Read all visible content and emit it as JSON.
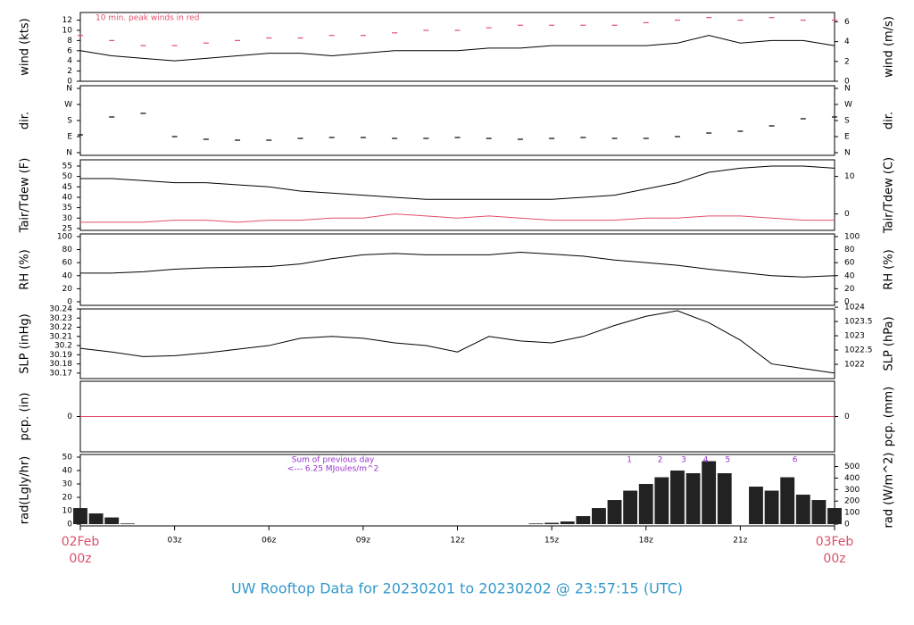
{
  "chart_data": [
    {
      "type": "line",
      "ylabel": "wind (kts)",
      "y2label": "wind (m/s)",
      "note": "10 min. peak winds in red",
      "xlim": [
        0,
        24
      ],
      "ylim": [
        0,
        13.5
      ],
      "yticks": [
        0,
        2,
        4,
        6,
        8,
        10,
        12
      ],
      "y2lim": [
        0,
        6.94
      ],
      "y2ticks": [
        0,
        2,
        4,
        6
      ],
      "x": [
        0,
        1,
        2,
        3,
        4,
        5,
        6,
        7,
        8,
        9,
        10,
        11,
        12,
        13,
        14,
        15,
        16,
        17,
        18,
        19,
        20,
        21,
        22,
        23,
        24
      ],
      "series": [
        {
          "type": "line",
          "color": "#000000",
          "values": [
            6,
            5,
            4.5,
            4,
            4.5,
            5,
            5.5,
            5.5,
            5,
            5.5,
            6,
            6,
            6,
            6.5,
            6.5,
            7,
            7,
            7,
            7,
            7.5,
            9,
            7.5,
            8,
            8,
            7
          ]
        },
        {
          "type": "dash",
          "color": "#e0506a",
          "values": [
            9,
            8,
            7,
            7,
            7.5,
            8,
            8.5,
            8.5,
            9,
            9,
            9.5,
            10,
            10,
            10.5,
            11,
            11,
            11,
            11,
            11.5,
            12,
            12.5,
            12,
            12.5,
            12,
            12
          ]
        }
      ]
    },
    {
      "type": "dash",
      "ylabel": "dir.",
      "y2label": "dir.",
      "xlim": [
        0,
        24
      ],
      "ylim": [
        -15,
        375
      ],
      "yticks": [
        {
          "value": 0,
          "label": "N"
        },
        {
          "value": 90,
          "label": "E"
        },
        {
          "value": 180,
          "label": "S"
        },
        {
          "value": 270,
          "label": "W"
        },
        {
          "value": 360,
          "label": "N"
        }
      ],
      "y2lim": [
        -15,
        375
      ],
      "y2ticks": [
        {
          "value": 0,
          "label": "N"
        },
        {
          "value": 90,
          "label": "E"
        },
        {
          "value": 180,
          "label": "S"
        },
        {
          "value": 270,
          "label": "W"
        },
        {
          "value": 360,
          "label": "N"
        }
      ],
      "x": [
        0,
        1,
        2,
        3,
        4,
        5,
        6,
        7,
        8,
        9,
        10,
        11,
        12,
        13,
        14,
        15,
        16,
        17,
        18,
        19,
        20,
        21,
        22,
        23,
        24
      ],
      "series": [
        {
          "color": "#000000",
          "values": [
            100,
            200,
            220,
            90,
            75,
            70,
            70,
            80,
            85,
            85,
            80,
            80,
            85,
            80,
            75,
            80,
            85,
            80,
            80,
            90,
            110,
            120,
            150,
            190,
            200
          ]
        }
      ]
    },
    {
      "type": "line",
      "ylabel": "Tair/Tdew (F)",
      "y2label": "Tair/Tdew (C)",
      "xlim": [
        0,
        24
      ],
      "ylim": [
        24.1,
        58
      ],
      "yticks": [
        25,
        30,
        35,
        40,
        45,
        50,
        55
      ],
      "y2lim": [
        -4.39,
        14.44
      ],
      "y2ticks": [
        0,
        10
      ],
      "x": [
        0,
        1,
        2,
        3,
        4,
        5,
        6,
        7,
        8,
        9,
        10,
        11,
        12,
        13,
        14,
        15,
        16,
        17,
        18,
        19,
        20,
        21,
        22,
        23,
        24
      ],
      "series": [
        {
          "color": "#000000",
          "values": [
            49,
            49,
            48,
            47,
            47,
            46,
            45,
            43,
            42,
            41,
            40,
            39,
            39,
            39,
            39,
            39,
            40,
            41,
            44,
            47,
            52,
            54,
            55,
            55,
            54
          ]
        },
        {
          "color": "#e0506a",
          "values": [
            28,
            28,
            28,
            29,
            29,
            28,
            29,
            29,
            30,
            30,
            32,
            31,
            30,
            31,
            30,
            29,
            29,
            29,
            30,
            30,
            31,
            31,
            30,
            29,
            29
          ]
        }
      ]
    },
    {
      "type": "line",
      "ylabel": "RH (%)",
      "y2label": "RH (%)",
      "xlim": [
        0,
        24
      ],
      "ylim": [
        -5.5,
        104
      ],
      "yticks": [
        0,
        20,
        40,
        60,
        80,
        100
      ],
      "y2lim": [
        -5.5,
        104
      ],
      "y2ticks": [
        0,
        20,
        40,
        60,
        80,
        100
      ],
      "x": [
        0,
        1,
        2,
        3,
        4,
        5,
        6,
        7,
        8,
        9,
        10,
        11,
        12,
        13,
        14,
        15,
        16,
        17,
        18,
        19,
        20,
        21,
        22,
        23,
        24
      ],
      "series": [
        {
          "color": "#000000",
          "values": [
            44,
            44,
            46,
            50,
            52,
            53,
            54,
            58,
            66,
            72,
            74,
            72,
            72,
            72,
            76,
            73,
            70,
            64,
            60,
            56,
            50,
            45,
            40,
            38,
            40
          ]
        }
      ]
    },
    {
      "type": "line",
      "ylabel": "SLP (inHg)",
      "y2label": "SLP (hPa)",
      "xlim": [
        0,
        24
      ],
      "ylim": [
        30.164,
        30.24
      ],
      "yticks": [
        30.17,
        30.18,
        30.19,
        30.2,
        30.21,
        30.22,
        30.23,
        30.24
      ],
      "y2lim": [
        1021.5,
        1023.94
      ],
      "y2ticks": [
        1022,
        1022.5,
        1023,
        1023.5,
        1024
      ],
      "x": [
        0,
        1,
        2,
        3,
        4,
        5,
        6,
        7,
        8,
        9,
        10,
        11,
        12,
        13,
        14,
        15,
        16,
        17,
        18,
        19,
        20,
        21,
        22,
        23,
        24
      ],
      "series": [
        {
          "color": "#000000",
          "values": [
            30.197,
            30.193,
            30.188,
            30.189,
            30.192,
            30.196,
            30.2,
            30.208,
            30.21,
            30.208,
            30.203,
            30.2,
            30.193,
            30.21,
            30.205,
            30.203,
            30.21,
            30.222,
            30.232,
            30.238,
            30.225,
            30.206,
            30.18,
            30.175,
            30.17
          ]
        }
      ]
    },
    {
      "type": "line",
      "ylabel": "pcp. (in)",
      "y2label": "pcp. (mm)",
      "xlim": [
        0,
        24
      ],
      "ylim": [
        -0.1,
        0.1
      ],
      "yticks": [
        0
      ],
      "y2lim": [
        -2.54,
        2.54
      ],
      "y2ticks": [
        0
      ],
      "x": [
        0,
        24
      ],
      "series": [
        {
          "color": "#e0506a",
          "values": [
            0,
            0
          ]
        }
      ]
    },
    {
      "type": "bar",
      "ylabel": "rad(Lgly/hr)",
      "y2label": "rad (W/m^2)",
      "note_lines": [
        "Sum of previous day",
        "<--- 6.25 MJoules/m^2"
      ],
      "markers": {
        "x": [
          17.47,
          18.45,
          19.2,
          19.9,
          20.6,
          22.74
        ],
        "labels": [
          "1",
          "2",
          "3",
          "4",
          "5",
          "6"
        ]
      },
      "xlim": [
        0,
        24
      ],
      "ylim": [
        -1.3,
        52
      ],
      "yticks": [
        0,
        10,
        20,
        30,
        40,
        50
      ],
      "y2lim": [
        -15.5,
        605
      ],
      "y2ticks": [
        0,
        100,
        200,
        300,
        400,
        500
      ],
      "xticks": [
        {
          "value": 0,
          "label": "02Feb 00z"
        },
        {
          "value": 3,
          "label": "03z"
        },
        {
          "value": 6,
          "label": "06z"
        },
        {
          "value": 9,
          "label": "09z"
        },
        {
          "value": 12,
          "label": "12z"
        },
        {
          "value": 15,
          "label": "15z"
        },
        {
          "value": 18,
          "label": "18z"
        },
        {
          "value": 21,
          "label": "21z"
        },
        {
          "value": 24,
          "label": "03Feb 00z"
        }
      ],
      "x": [
        0,
        0.5,
        1,
        1.5,
        2,
        2.5,
        3,
        3.5,
        4,
        4.5,
        5,
        5.5,
        6,
        6.5,
        7,
        7.5,
        8,
        8.5,
        9,
        9.5,
        10,
        10.5,
        11,
        11.5,
        12,
        12.5,
        13,
        13.5,
        14,
        14.5,
        15,
        15.5,
        16,
        16.5,
        17,
        17.5,
        18,
        18.5,
        19,
        19.5,
        20,
        20.5,
        21,
        21.5,
        22,
        22.5,
        23,
        23.5,
        24
      ],
      "series": [
        {
          "color": "#222222",
          "values": [
            12,
            8,
            5,
            0.5,
            0,
            0,
            0,
            0,
            0,
            0,
            0,
            0,
            0,
            0,
            0,
            0,
            0,
            0,
            0,
            0,
            0,
            0,
            0,
            0,
            0,
            0,
            0,
            0,
            0,
            0.5,
            1,
            2,
            6,
            12,
            18,
            25,
            30,
            35,
            40,
            38,
            47,
            38,
            0,
            28,
            25,
            35,
            22,
            18,
            12
          ]
        }
      ]
    }
  ],
  "footer": "UW Rooftop Data for 20230201  to  20230202 @ 23:57:15  (UTC)"
}
